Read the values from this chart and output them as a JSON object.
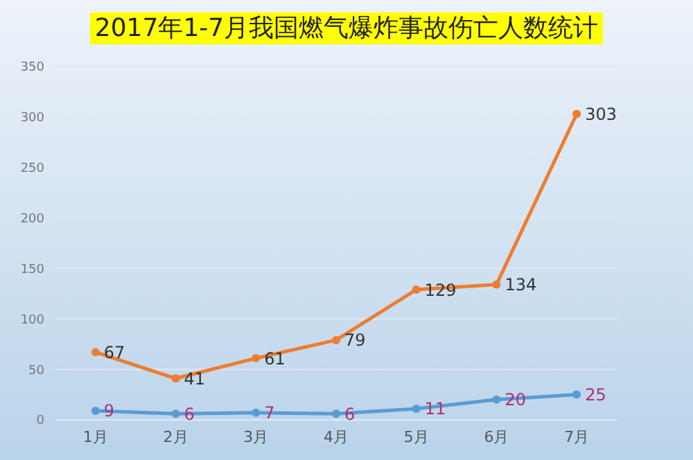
{
  "chart_data": {
    "type": "line",
    "title": "2017年1-7月我国燃气爆炸事故伤亡人数统计",
    "categories": [
      "1月",
      "2月",
      "3月",
      "4月",
      "5月",
      "6月",
      "7月"
    ],
    "series": [
      {
        "color": "#ed7d31",
        "values": [
          67,
          41,
          61,
          79,
          129,
          134,
          303
        ]
      },
      {
        "color": "#5b9bd5",
        "values": [
          9,
          6,
          7,
          6,
          11,
          20,
          25
        ]
      }
    ],
    "ylim": [
      0,
      350
    ],
    "yticks": [
      0,
      50,
      100,
      150,
      200,
      250,
      300,
      350
    ],
    "grid": "y",
    "legend": false,
    "marker": "circle",
    "data_labels": true
  }
}
